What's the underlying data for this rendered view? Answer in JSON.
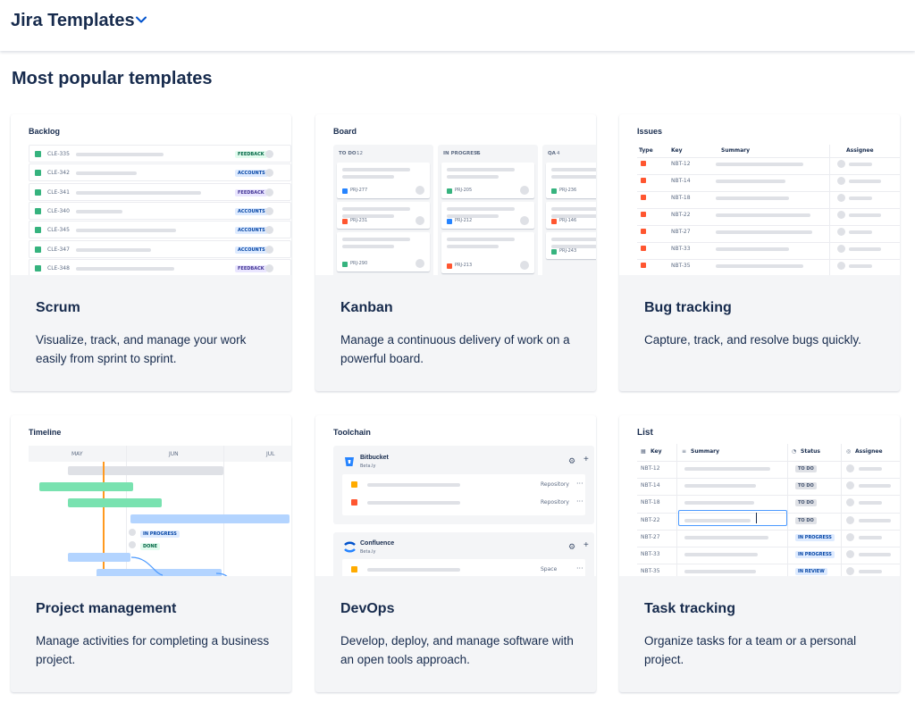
{
  "header": {
    "title": "Jira Templates",
    "chevron_icon": "chevron-down-icon"
  },
  "section_title": "Most popular templates",
  "colors": {
    "accent": "#0052CC",
    "green": "#36B37E",
    "red": "#FF5630",
    "blue": "#2684FF"
  },
  "cards": [
    {
      "title": "Scrum",
      "description": "Visualize, track, and manage your work easily from sprint to sprint.",
      "preview": {
        "label": "Backlog",
        "rows": [
          {
            "key": "CLE-335",
            "badge": "FEEDBACK"
          },
          {
            "key": "CLE-342",
            "badge": "ACCOUNTS"
          },
          {
            "key": "CLE-341",
            "badge": "FEEDBACK"
          },
          {
            "key": "CLE-340",
            "badge": "ACCOUNTS"
          },
          {
            "key": "CLE-345",
            "badge": "ACCOUNTS"
          },
          {
            "key": "CLE-347",
            "badge": "ACCOUNTS"
          },
          {
            "key": "CLE-348",
            "badge": "FEEDBACK"
          }
        ]
      }
    },
    {
      "title": "Kanban",
      "description": "Manage a continuous delivery of work on a powerful board.",
      "preview": {
        "label": "Board",
        "columns": [
          {
            "name": "TO DO",
            "count": "12",
            "keys": [
              "PRJ-277",
              "PRJ-231",
              "PRJ-290"
            ]
          },
          {
            "name": "IN PROGRESS",
            "count": "4",
            "keys": [
              "PRJ-205",
              "PRJ-212",
              "PRJ-213"
            ]
          },
          {
            "name": "QA",
            "count": "4",
            "keys": [
              "PRJ-236",
              "PRJ-146",
              "PRJ-243"
            ]
          }
        ]
      }
    },
    {
      "title": "Bug tracking",
      "description": "Capture, track, and resolve bugs quickly.",
      "preview": {
        "label": "Issues",
        "headers": {
          "type": "Type",
          "key": "Key",
          "summary": "Summary",
          "assignee": "Assignee"
        },
        "keys": [
          "NBT-12",
          "NBT-14",
          "NBT-18",
          "NBT-22",
          "NBT-27",
          "NBT-33",
          "NBT-35"
        ]
      }
    },
    {
      "title": "Project management",
      "description": "Manage activities for completing a business project.",
      "preview": {
        "label": "Timeline",
        "months": [
          "MAY",
          "JUN",
          "JUL"
        ],
        "statuses": [
          "IN PROGRESS",
          "DONE"
        ]
      }
    },
    {
      "title": "DevOps",
      "description": "Develop, deploy, and manage software with an open tools approach.",
      "preview": {
        "label": "Toolchain",
        "tools": [
          {
            "name": "Bitbucket",
            "sub": "Beta.ly",
            "items": [
              "Repository",
              "Repository"
            ]
          },
          {
            "name": "Confluence",
            "sub": "Beta.ly",
            "items": [
              "Space"
            ]
          }
        ]
      }
    },
    {
      "title": "Task tracking",
      "description": "Organize tasks for a team or a personal project.",
      "preview": {
        "label": "List",
        "headers": {
          "key": "Key",
          "summary": "Summary",
          "status": "Status",
          "assignee": "Assignee"
        },
        "rows": [
          {
            "key": "NBT-12",
            "status": "TO DO"
          },
          {
            "key": "NBT-14",
            "status": "TO DO"
          },
          {
            "key": "NBT-18",
            "status": "TO DO"
          },
          {
            "key": "NBT-22",
            "status": "TO DO"
          },
          {
            "key": "NBT-27",
            "status": "IN PROGRESS"
          },
          {
            "key": "NBT-33",
            "status": "IN PROGRESS"
          },
          {
            "key": "NBT-35",
            "status": "IN REVIEW"
          }
        ]
      }
    }
  ]
}
